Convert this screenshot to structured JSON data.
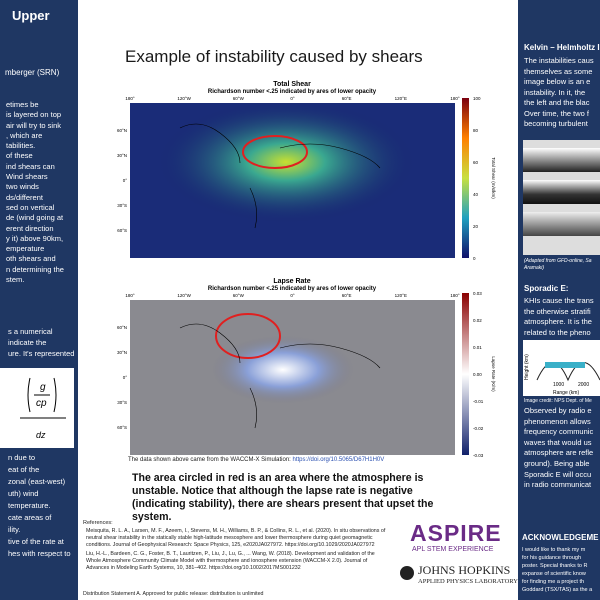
{
  "left": {
    "heading": "Upper",
    "author": "mberger (SRN)",
    "lines1": [
      "etimes be",
      "is layered on top",
      "air will try to sink",
      ", which are",
      "tabilities.",
      "of these",
      "ind shears can",
      "Wind shears",
      "two winds",
      "ds/different",
      "sed on vertical",
      "de (wind going at",
      "erent direction",
      "y it) above 90km,",
      "emperature",
      "oth shears and",
      "n determining the",
      "stem."
    ],
    "lines2": [
      "s a numerical",
      "indicate the",
      "ure. It's represented"
    ],
    "formula": {
      "numerator": "g",
      "denominator": "cp",
      "bottom": "dz"
    },
    "lines3": [
      "n due to",
      "eat of the",
      "zonal (east-west)",
      "uth) wind",
      "temperature.",
      "cate areas of",
      "ility.",
      "tive of the rate at",
      "hes with respect to"
    ]
  },
  "center": {
    "title": "Example of instability caused by shears",
    "maps": [
      {
        "title": "Total Shear",
        "subtitle": "Richardson number <.25 indicated by ares of lower opacity",
        "lon_labels": [
          "180°",
          "120°W",
          "60°W",
          "0°",
          "60°E",
          "120°E",
          "180°"
        ],
        "lat_labels": [
          "60°N",
          "30°N",
          "0°",
          "30°S",
          "60°S"
        ],
        "colorbar_label": "Total Shear (m/s/km)",
        "colorbar_ticks": [
          "100",
          "80",
          "60",
          "40",
          "20",
          "0"
        ]
      },
      {
        "title": "Lapse Rate",
        "subtitle": "Richardson number <.25 indicated by ares of lower opacity",
        "lon_labels": [
          "180°",
          "120°W",
          "60°W",
          "0°",
          "60°E",
          "120°E",
          "180°"
        ],
        "lat_labels": [
          "60°N",
          "30°N",
          "0°",
          "30°S",
          "60°S"
        ],
        "colorbar_label": "Lapse Rate (K/m)",
        "colorbar_ticks": [
          "0.03",
          "0.02",
          "0.01",
          "0.00",
          "-0.01",
          "-0.02",
          "-0.03"
        ]
      }
    ],
    "caption": "The data shown above came from the WACCM-X Simulation: ",
    "caption_link": "https://doi.org/10.5065/D67H1H0V",
    "conclusion": "The area circled in red is an area where the atmosphere is unstable. Notice that although the lapse rate is negative (indicating stability), there are shears present that upset the system.",
    "references_heading": "References:",
    "references": [
      "Meisquita, R. L. A., Larsen, M. F., Azeem, I., Stevens, M. H., Williams, B. P., & Collins, R. L., et al. (2020). In situ observations of neutral shear instability in the statically stable high-latitude mesosphere and lower thermosphere during quiet geomagnetic conditions. Journal of Geophysical Research: Space Physics, 125, e2020JA027972. https://doi.org/10.1029/2020JA027972",
      "Liu, H.-L., Bardeen, C. G., Foster, B. T., Lauritzen, P., Liu, J., Lu, G., ... Wang, W. (2018). Development and validation of the Whole Atmosphere Community Climate Model with thermosphere and ionosphere extension (WACCM-X 2.0). Journal of Advances in Modeling Earth Systems, 10, 381–402. https://doi.org/10.1002/2017MS001232"
    ],
    "distribution": "Distribution Statement A. Approved for public release: distribution is unlimited",
    "logo": {
      "name": "ASPIRE",
      "tagline": "APL STEM EXPERIENCE",
      "org1": "JOHNS HOPKINS",
      "org2": "APPLIED PHYSICS LABORATORY"
    }
  },
  "right": {
    "heading1": "Kelvin – Helmholtz I",
    "lines1": [
      "The instabilities caus",
      "themselves as some",
      "image below is an e",
      "instability. In it, the",
      "the left and the blac",
      "Over time, the two f",
      "becoming turbulent"
    ],
    "credit1": [
      "(Adapted from GFD-online, Sa",
      "Aramaki)"
    ],
    "heading2": "Sporadic E:",
    "lines2": [
      "KHIs cause the trans",
      "the otherwise stratifi",
      "atmosphere. It is the",
      "related to the pheno"
    ],
    "plot": {
      "ylabel": "Height (km)",
      "xlabel": "Range (km)",
      "xtick1": "1000",
      "xtick2": "2000"
    },
    "credit2": "Image credit: NPS Dept. of Me",
    "lines3": [
      "Observed by radio e",
      "phenomenon allows",
      "frequency communic",
      "waves that would us",
      "atmosphere are refle",
      "ground). Being able",
      "Sporadic E will occu",
      "in radio communicat"
    ],
    "heading3": "ACKNOWLEDGEME",
    "lines4": [
      "I would like to thank my m",
      "for his guidance through",
      "poster. Special thanks to R",
      "expanse of scientific know",
      "for finding me a project th",
      "Goddard (TSX/TAS) as the a"
    ]
  }
}
